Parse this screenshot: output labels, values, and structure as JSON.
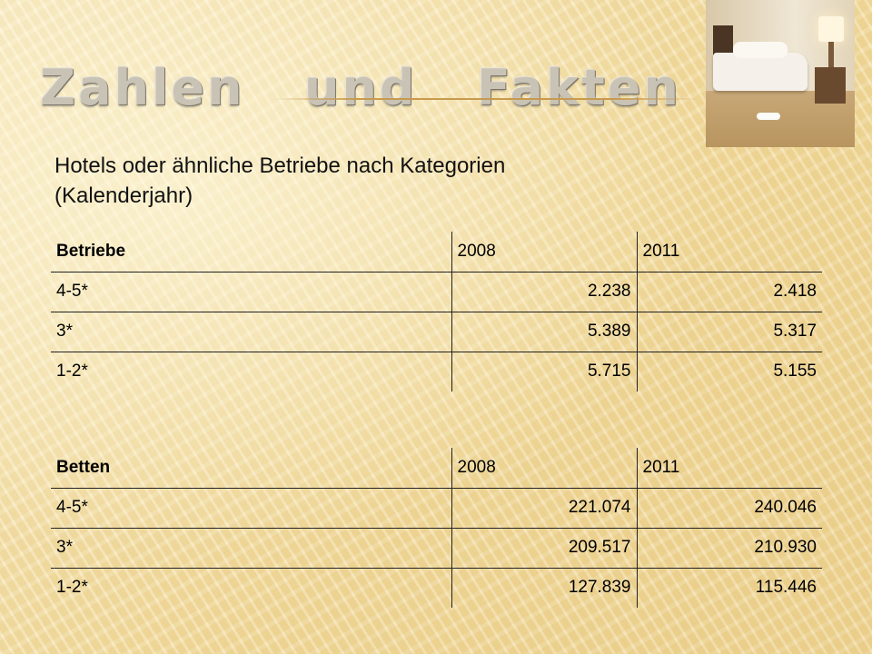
{
  "slide": {
    "title": "Zahlen   und   Fakten",
    "subtitle_line1": "Hotels oder ähnliche Betriebe nach Kategorien",
    "subtitle_line2": "(Kalenderjahr)"
  },
  "table_betriebe": {
    "headers": [
      "Betriebe",
      "2008",
      "2011"
    ],
    "rows": [
      [
        "4-5*",
        "2.238",
        "2.418"
      ],
      [
        "3*",
        "5.389",
        "5.317"
      ],
      [
        "1-2*",
        "5.715",
        "5.155"
      ]
    ]
  },
  "table_betten": {
    "headers": [
      "Betten",
      "2008",
      "2011"
    ],
    "rows": [
      [
        "4-5*",
        "221.074",
        "240.046"
      ],
      [
        "3*",
        "209.517",
        "210.930"
      ],
      [
        "1-2*",
        "127.839",
        "115.446"
      ]
    ]
  },
  "image": {
    "icon": "hotel-room-photo"
  }
}
